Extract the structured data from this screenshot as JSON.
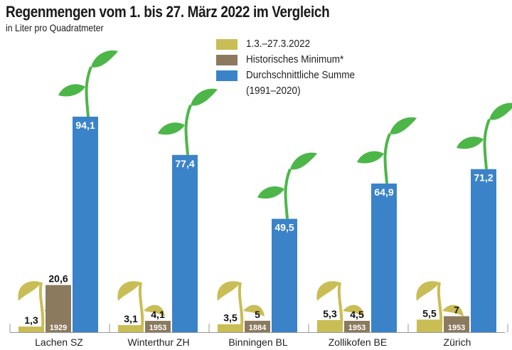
{
  "header": {
    "title": "Regenmengen vom 1. bis 27. März 2022 im Vergleich",
    "subtitle": "in Liter pro Quadratmeter"
  },
  "legend": {
    "items": [
      {
        "label": "1.3.–27.3.2022",
        "color": "#c9bd55"
      },
      {
        "label": "Historisches Minimum*",
        "color": "#8c7a5f"
      },
      {
        "label": "Durchschnittliche Summe",
        "label2": "(1991–2020)",
        "color": "#3b83c9"
      }
    ]
  },
  "chart_data": {
    "type": "bar",
    "title": "Regenmengen vom 1. bis 27. März 2022 im Vergleich",
    "subtitle": "in Liter pro Quadratmeter",
    "xlabel": "",
    "ylabel": "Liter pro Quadratmeter",
    "ylim": [
      0,
      100
    ],
    "grid": false,
    "legend_position": "top-center",
    "categories": [
      "Lachen SZ",
      "Winterthur ZH",
      "Binningen BL",
      "Zollikofen BE",
      "Zürich"
    ],
    "series": [
      {
        "name": "1.3.–27.3.2022",
        "color": "#c9bd55",
        "values": [
          1.3,
          3.1,
          3.5,
          5.3,
          5.5
        ],
        "labels": [
          "1,3",
          "3,1",
          "3,5",
          "5,3",
          "5,5"
        ]
      },
      {
        "name": "Historisches Minimum*",
        "color": "#8c7a5f",
        "values": [
          20.6,
          4.1,
          5,
          4.5,
          7
        ],
        "labels": [
          "20,6",
          "4,1",
          "5",
          "4,5",
          "7"
        ],
        "years": [
          "1929",
          "1953",
          "1884",
          "1953",
          "1953"
        ]
      },
      {
        "name": "Durchschnittliche Summe (1991–2020)",
        "color": "#3b83c9",
        "values": [
          94.1,
          77.4,
          49.5,
          64.9,
          71.2
        ],
        "labels": [
          "94,1",
          "77,4",
          "49,5",
          "64,9",
          "71,2"
        ]
      }
    ],
    "decorations": {
      "wilted_plant_color": "#c9bd55",
      "healthy_plant_color": "#4cb648"
    }
  }
}
